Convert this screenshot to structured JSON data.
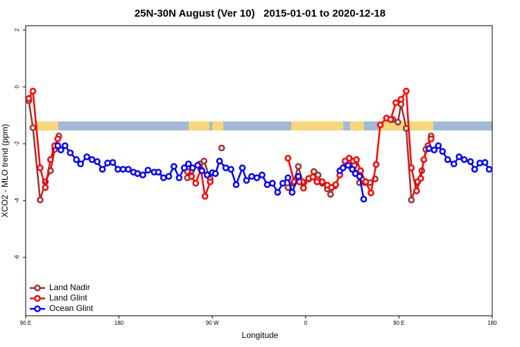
{
  "chart_data": {
    "type": "line",
    "title": "25N-30N August (Ver 10)   2015-01-01 to 2020-12-18",
    "x_label": "Longitude",
    "y_label": "XCO2 - MLO trend (ppm)",
    "xlim": [
      90,
      540
    ],
    "xticks": [
      {
        "value": 90,
        "label": "90 E"
      },
      {
        "value": 180,
        "label": "180"
      },
      {
        "value": 270,
        "label": "90 W"
      },
      {
        "value": 360,
        "label": "0"
      },
      {
        "value": 450,
        "label": "90 E"
      },
      {
        "value": 540,
        "label": "180"
      }
    ],
    "ylim": [
      -8.05,
      2.15
    ],
    "yticks": [
      2,
      0,
      -2,
      -4,
      -6
    ],
    "legend": "bottomleft",
    "series": [
      {
        "name": "Land Nadir",
        "color": "#a0302c",
        "x": [
          93,
          97,
          104,
          109,
          114,
          118,
          122,
          null,
          246,
          250,
          258,
          262,
          268,
          null,
          279,
          null,
          343,
          348,
          353,
          357,
          363,
          368,
          372,
          376,
          381,
          384,
          388,
          null,
          403,
          407,
          412,
          417,
          422,
          427,
          null,
          438,
          444,
          449,
          452,
          457,
          462,
          468,
          472,
          476,
          481
        ],
        "values": [
          -0.49,
          -1.44,
          -3.98,
          -3.34,
          -2.95,
          -2.2,
          -1.73,
          null,
          -3.2,
          -2.95,
          -2.71,
          -2.61,
          -3.24,
          null,
          -2.15,
          null,
          -3.54,
          -3.39,
          -2.8,
          -3.34,
          -3.24,
          -2.98,
          -3.1,
          -3.39,
          -3.59,
          -3.78,
          -3.49,
          null,
          -2.61,
          -2.76,
          -3.37,
          -3.37,
          -3.37,
          -3.24,
          null,
          -1.1,
          -1.15,
          -1.24,
          -0.61,
          -1.46,
          -3.98,
          -3.34,
          -2.95,
          -2.2,
          -1.73
        ]
      },
      {
        "name": "Land Glint",
        "color": "#ff0000",
        "x": [
          93,
          97,
          104,
          109,
          114,
          118,
          121,
          null,
          246,
          250,
          254,
          259,
          263,
          268,
          null,
          343,
          349,
          354,
          358,
          363,
          367,
          371,
          376,
          381,
          385,
          389,
          393,
          398,
          402,
          406,
          409,
          413,
          418,
          423,
          428,
          432,
          438,
          442,
          447,
          452,
          457,
          462,
          467,
          471,
          474,
          478,
          481
        ],
        "values": [
          -0.41,
          -0.15,
          -2.85,
          -3.54,
          -2.56,
          -2.07,
          -1.83,
          null,
          -2.98,
          -3.15,
          -3.39,
          -2.9,
          -3.85,
          -3.34,
          null,
          -2.51,
          -3.34,
          -3.34,
          -3.56,
          -3.22,
          -3.17,
          -3.34,
          -3.34,
          -3.46,
          -3.54,
          -3.44,
          -3.1,
          -2.61,
          -2.51,
          -2.61,
          -2.56,
          -2.95,
          -3.34,
          -3.73,
          -2.73,
          -1.34,
          -1.1,
          -1.15,
          -0.56,
          -0.44,
          -0.15,
          -2.85,
          -3.66,
          -3.22,
          -2.56,
          -2.07,
          -1.83
        ]
      },
      {
        "name": "Ocean Glint",
        "color": "#0000ff",
        "x": [
          121,
          124,
          128,
          133,
          139,
          143,
          149,
          154,
          159,
          164,
          169,
          174,
          179,
          184,
          189,
          194,
          198,
          203,
          208,
          214,
          218,
          223,
          228,
          233,
          238,
          243,
          247,
          251,
          256,
          260,
          265,
          270,
          273,
          277,
          283,
          288,
          293,
          299,
          303,
          308,
          313,
          318,
          323,
          328,
          333,
          338,
          343,
          347,
          353,
          null,
          393,
          396,
          401,
          405,
          408,
          412,
          416,
          null,
          479,
          484,
          488,
          492,
          497,
          503,
          508,
          513,
          519,
          523,
          528,
          533,
          537
        ],
        "values": [
          -2.07,
          -2.22,
          -2.07,
          -2.32,
          -2.56,
          -2.71,
          -2.46,
          -2.56,
          -2.63,
          -2.9,
          -2.68,
          -2.66,
          -2.9,
          -2.9,
          -2.9,
          -3.0,
          -3.05,
          -3.1,
          -2.93,
          -3.0,
          -3.0,
          -3.2,
          -3.15,
          -2.8,
          -3.2,
          -2.85,
          -2.71,
          -2.85,
          -2.76,
          -2.95,
          -3.1,
          -3.02,
          -3.05,
          -2.61,
          -2.85,
          -2.9,
          -3.44,
          -2.85,
          -3.29,
          -3.15,
          -3.2,
          -3.1,
          -3.44,
          -3.39,
          -3.71,
          -3.39,
          -3.2,
          -3.71,
          -3.15,
          null,
          -2.95,
          -2.85,
          -2.76,
          -2.9,
          -3.05,
          -3.15,
          -3.95,
          null,
          -2.17,
          -2.22,
          -2.07,
          -2.27,
          -2.56,
          -2.71,
          -2.46,
          -2.56,
          -2.63,
          -2.9,
          -2.68,
          -2.66,
          -2.9
        ]
      }
    ]
  }
}
